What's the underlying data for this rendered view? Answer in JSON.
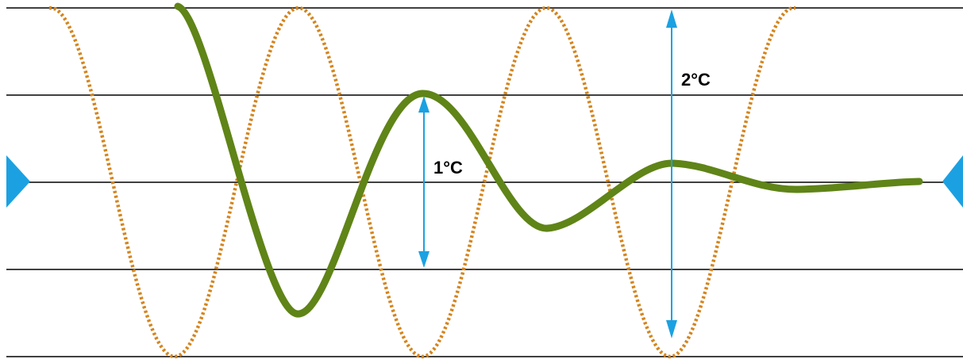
{
  "colors": {
    "background": "#ffffff",
    "gridline": "#000000",
    "oscillation": "#d4851e",
    "damped": "#5f8417",
    "arrow": "#1ba1e2",
    "marker": "#1ba1e2"
  },
  "gridlines": {
    "count": 5
  },
  "oscillation": {
    "style": "dotted",
    "periods_visible": 3.8
  },
  "damped_response": {
    "style": "solid",
    "settles_to": "centerline"
  },
  "annotations": {
    "small_amplitude": {
      "label": "1°C"
    },
    "large_amplitude": {
      "label": "2°C"
    }
  },
  "markers": {
    "left": {
      "icon": "triangle-right-icon"
    },
    "right": {
      "icon": "triangle-left-icon"
    }
  }
}
